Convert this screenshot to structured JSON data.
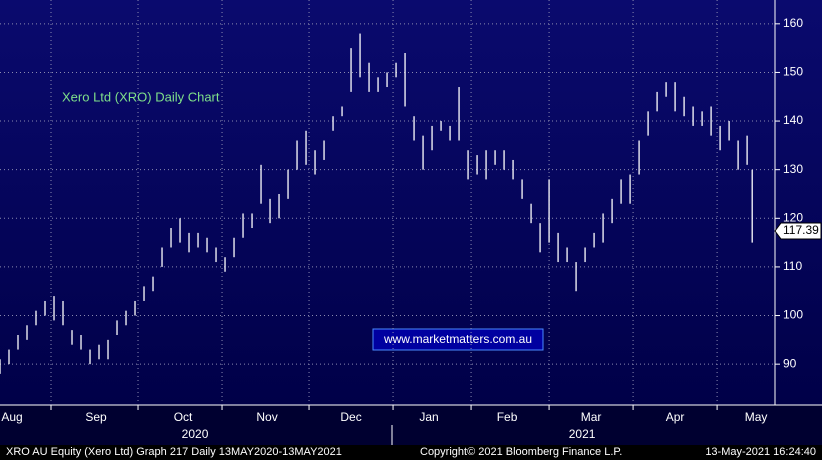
{
  "chart_data": {
    "type": "ohlc",
    "title": "Xero Ltd (XRO) Daily Chart",
    "watermark": "www.marketmatters.com.au",
    "color": "#ffffff",
    "x": [
      0,
      3,
      6,
      9,
      12,
      15,
      18,
      21,
      24,
      27,
      30,
      33,
      36,
      39,
      42,
      45,
      48,
      51,
      54,
      57,
      60,
      63,
      66,
      69,
      72,
      75,
      78,
      81,
      84,
      87,
      90,
      93,
      96,
      99,
      102,
      105,
      108,
      111,
      114,
      117,
      120,
      123,
      126,
      129,
      132,
      135,
      138,
      141,
      144,
      147,
      150,
      153,
      156,
      159,
      162,
      165,
      168,
      171,
      174,
      177,
      180,
      183,
      186,
      189,
      192,
      195,
      198,
      201,
      204,
      207,
      210,
      213,
      216,
      219,
      222,
      225,
      228,
      231,
      234,
      237,
      240,
      243,
      246,
      249,
      250.7
    ],
    "high": [
      91,
      93,
      96,
      98,
      101,
      103,
      104,
      103,
      97,
      96,
      93,
      94,
      95,
      99,
      101,
      103,
      106,
      108,
      114,
      118,
      120,
      117,
      117,
      116,
      114,
      112,
      116,
      121,
      121,
      131,
      124,
      125,
      130,
      136,
      138,
      134,
      136,
      141,
      143,
      155,
      158,
      152,
      149,
      150,
      152,
      154,
      141,
      137,
      139,
      140,
      139,
      147,
      134,
      133,
      134,
      134,
      134,
      132,
      128,
      123,
      119,
      128,
      117,
      114,
      111,
      114,
      117,
      121,
      124,
      128,
      129,
      136,
      142,
      146,
      148,
      148,
      145,
      143,
      142,
      143,
      139,
      140,
      136,
      137,
      130
    ],
    "low": [
      88,
      90,
      93,
      95,
      98,
      100,
      99,
      98,
      94,
      93,
      90,
      91,
      91,
      96,
      98,
      100,
      103,
      105,
      110,
      114,
      115,
      113,
      114,
      113,
      111,
      109,
      112,
      116,
      118,
      123,
      119,
      120,
      124,
      130,
      131,
      129,
      132,
      138,
      141,
      146,
      149,
      146,
      146,
      147,
      149,
      143,
      136,
      130,
      134,
      138,
      136,
      136,
      128,
      129,
      128,
      131,
      130,
      128,
      124,
      119,
      113,
      115,
      111,
      111,
      105,
      111,
      114,
      115,
      119,
      123,
      123,
      129,
      137,
      142,
      145,
      142,
      141,
      139,
      139,
      137,
      134,
      136,
      130,
      131,
      115
    ],
    "last_price": 117.39,
    "ylim": [
      81.6,
      164.9
    ],
    "yticks": [
      90,
      100,
      110,
      120,
      130,
      140,
      150,
      160
    ],
    "xlim": [
      0,
      258.3
    ],
    "xticks": [
      17,
      46,
      74,
      103,
      131,
      157,
      183,
      211,
      239
    ],
    "months": [
      {
        "value": 4,
        "label": "Aug"
      },
      {
        "value": 32,
        "label": "Sep"
      },
      {
        "value": 61,
        "label": "Oct"
      },
      {
        "value": 89,
        "label": "Nov"
      },
      {
        "value": 117,
        "label": "Dec"
      },
      {
        "value": 143,
        "label": "Jan"
      },
      {
        "value": 169,
        "label": "Feb"
      },
      {
        "value": 197,
        "label": "Mar"
      },
      {
        "value": 225,
        "label": "Apr"
      },
      {
        "value": 252,
        "label": "May"
      }
    ],
    "years": [
      {
        "value": 65,
        "label": "2020"
      },
      {
        "value": 194,
        "label": "2021"
      }
    ],
    "grid": true,
    "footer": [
      "XRO AU Equity (Xero Ltd) Graph 217  Daily 13MAY2020-13MAY2021",
      "Copyright© 2021 Bloomberg Finance L.P.",
      "13-May-2021 16:24:40"
    ]
  }
}
